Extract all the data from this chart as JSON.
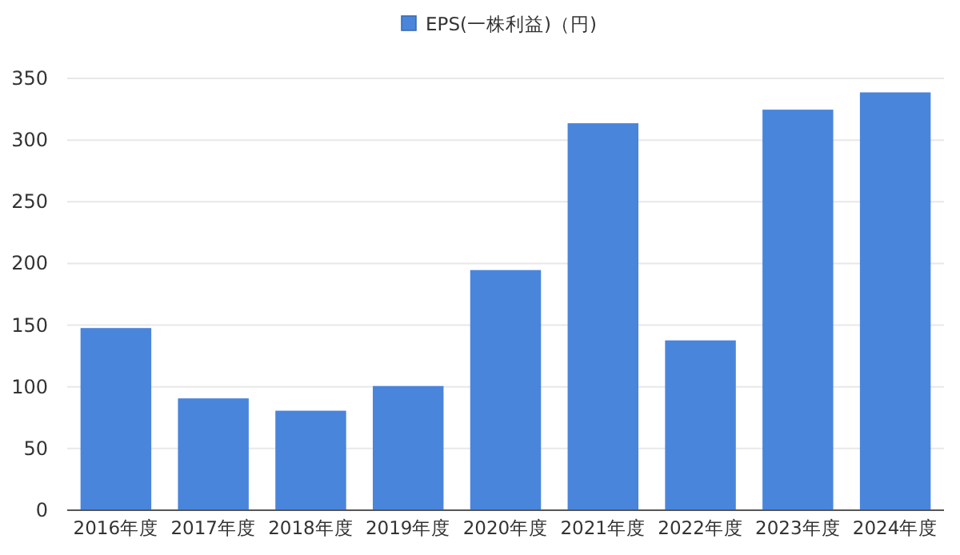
{
  "chart_data": {
    "type": "bar",
    "categories": [
      "2016年度",
      "2017年度",
      "2018年度",
      "2019年度",
      "2020年度",
      "2021年度",
      "2022年度",
      "2023年度",
      "2024年度"
    ],
    "series": [
      {
        "name": "EPS(一株利益)（円)",
        "color": "#4a85dc",
        "values": [
          147,
          90,
          80,
          100,
          194,
          313,
          137,
          324,
          338
        ]
      }
    ],
    "ylim": [
      0,
      350
    ],
    "yticks": [
      0,
      50,
      100,
      150,
      200,
      250,
      300,
      350
    ],
    "grid": "y",
    "legend": "top"
  }
}
